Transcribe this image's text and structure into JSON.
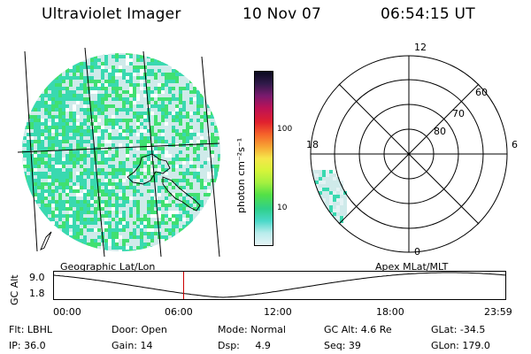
{
  "header": {
    "title": "Ultraviolet Imager",
    "date": "10 Nov 07",
    "time": "06:54:15 UT"
  },
  "colors": {
    "low": "#cfeaea",
    "mid": "#39d9b0",
    "high": "#40e070",
    "panel_bg": "#ffffff",
    "red_marker": "#cc0000",
    "colorbar": [
      "#e6f4f6",
      "#b9ecec",
      "#49d8c8",
      "#2fd08a",
      "#53e046",
      "#a4f040",
      "#d6f43a",
      "#f6e64a",
      "#f7a233",
      "#f5622a",
      "#e0202e",
      "#bd1255",
      "#7a1a6e",
      "#311a4a",
      "#0a0a1e"
    ]
  },
  "colorbar": {
    "title": "photon cm⁻²s⁻¹",
    "ticks": [
      "100",
      "10"
    ]
  },
  "polar": {
    "labels": {
      "top": "12",
      "left": "18",
      "right": "6",
      "bottom": "0"
    },
    "lat_labels": [
      "60",
      "70",
      "80"
    ]
  },
  "timeseries": {
    "left_title": "Geographic Lat/Lon",
    "right_title": "Apex  MLat/MLT",
    "ylabel": "GC Alt",
    "y_top": "9.0",
    "y_bottom": "1.8",
    "x_ticks": [
      "00:00",
      "06:00",
      "12:00",
      "18:00",
      "23:59"
    ],
    "marker_time_h": 6.904
  },
  "footer": {
    "row1": [
      "Flt: LBHL",
      "Door: Open",
      "Mode: Normal",
      "GC Alt: 4.6 Re",
      "GLat: -34.5"
    ],
    "row2": [
      "IP: 36.0",
      "Gain: 14",
      "Dsp:     4.9",
      "Seq: 39",
      "GLon: 179.0"
    ]
  }
}
